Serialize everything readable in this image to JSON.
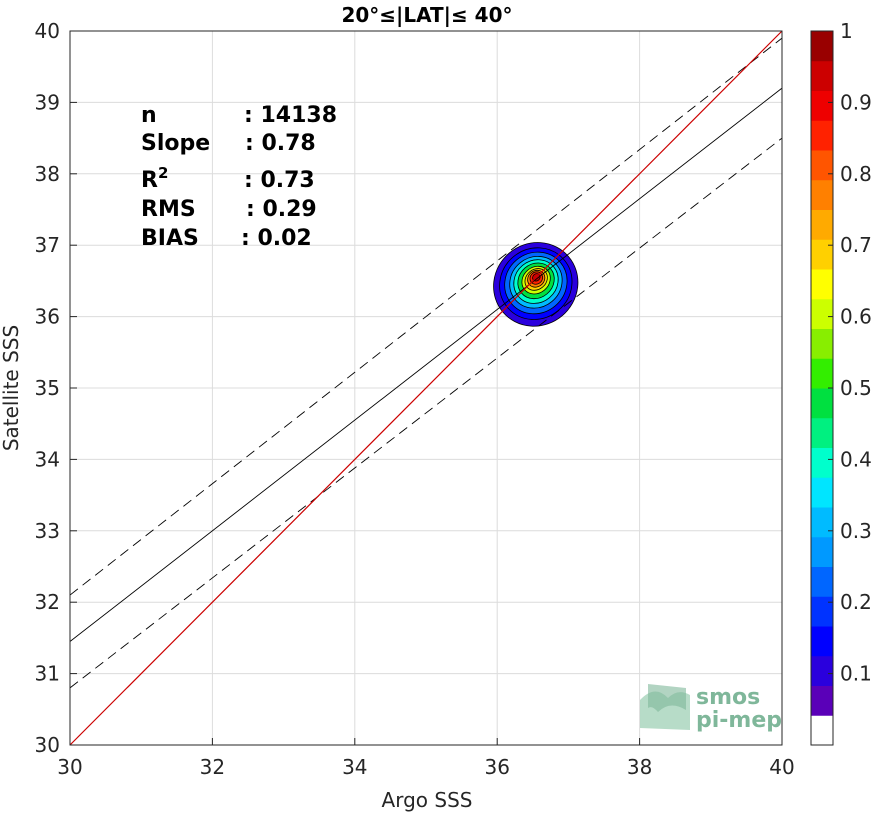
{
  "chart_data": {
    "type": "scatter",
    "title": "20°≤|LAT|≤ 40°",
    "xlabel": "Argo SSS",
    "ylabel": "Satellite SSS",
    "xlim": [
      30,
      40
    ],
    "ylim": [
      30,
      40
    ],
    "xticks": [
      30,
      32,
      34,
      36,
      38,
      40
    ],
    "yticks": [
      30,
      31,
      32,
      33,
      34,
      35,
      36,
      37,
      38,
      39,
      40
    ],
    "grid": true,
    "stats": [
      {
        "label": "n",
        "value": ": 14138"
      },
      {
        "label": "Slope",
        "value": ": 0.78"
      },
      {
        "label": "R2",
        "value": ": 0.73"
      },
      {
        "label": "RMS",
        "value": ": 0.29"
      },
      {
        "label": "BIAS",
        "value": ": 0.02"
      }
    ],
    "one_to_one_line": {
      "x": [
        30,
        40
      ],
      "y": [
        30,
        40
      ],
      "color": "#cc0000"
    },
    "fit_line": {
      "x": [
        30,
        40
      ],
      "y": [
        31.45,
        39.2
      ],
      "color": "#000000"
    },
    "fit_bounds_upper": {
      "x": [
        30,
        40
      ],
      "y": [
        32.1,
        39.9
      ]
    },
    "fit_bounds_lower": {
      "x": [
        30,
        40
      ],
      "y": [
        30.8,
        38.5
      ]
    },
    "density_center": {
      "x": 36.55,
      "y": 36.55
    },
    "colorbar": {
      "ticks": [
        0.1,
        0.2,
        0.3,
        0.4,
        0.5,
        0.6,
        0.7,
        0.8,
        0.9,
        1
      ],
      "range": [
        0,
        1
      ],
      "colors": [
        "#ffffff",
        "#5a00b8",
        "#2a00dd",
        "#0000ff",
        "#0033ff",
        "#0066ff",
        "#0099ff",
        "#00bbff",
        "#00e5ff",
        "#00ffcc",
        "#00f080",
        "#00e040",
        "#33ee00",
        "#88ee00",
        "#ccff00",
        "#ffff00",
        "#ffd000",
        "#ffaa00",
        "#ff8000",
        "#ff5500",
        "#ff2200",
        "#ee0000",
        "#cc0000",
        "#990000"
      ]
    },
    "logo": {
      "line1": "smos",
      "line2": "pi-mep"
    }
  }
}
